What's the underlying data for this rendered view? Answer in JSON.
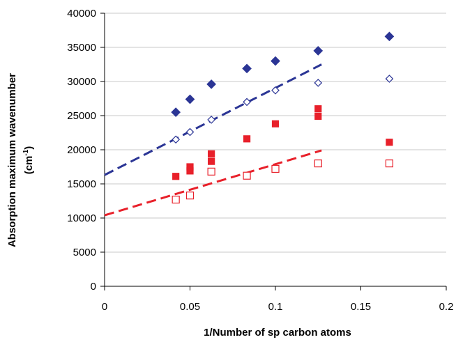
{
  "chart_data": {
    "type": "scatter",
    "xlabel": "1/Number of sp carbon atoms",
    "ylabel": "Absorption maximum wavenumber",
    "ylabel_unit": "(cm-1)",
    "ylabel_unit_base": "(cm",
    "ylabel_unit_sup": "-1",
    "ylabel_unit_close": ")",
    "xlim": [
      0,
      0.2
    ],
    "ylim": [
      0,
      40000
    ],
    "xticks": [
      "0",
      "0.05",
      "0.1",
      "0.15",
      "0.2"
    ],
    "yticks": [
      "0",
      "5000",
      "10000",
      "15000",
      "20000",
      "25000",
      "30000",
      "35000",
      "40000"
    ],
    "grid": "horizontal",
    "series": [
      {
        "marker": "diamond-filled",
        "color": "#2b3595",
        "points": [
          [
            0.0417,
            25500
          ],
          [
            0.05,
            27400
          ],
          [
            0.0625,
            29600
          ],
          [
            0.0833,
            31900
          ],
          [
            0.1,
            33000
          ],
          [
            0.125,
            34500
          ],
          [
            0.1667,
            36600
          ]
        ]
      },
      {
        "marker": "diamond-open",
        "color": "#2b3595",
        "points": [
          [
            0.0417,
            21500
          ],
          [
            0.05,
            22600
          ],
          [
            0.0625,
            24400
          ],
          [
            0.0833,
            27000
          ],
          [
            0.1,
            28700
          ],
          [
            0.125,
            29800
          ],
          [
            0.1667,
            30400
          ]
        ]
      },
      {
        "marker": "square-filled",
        "color": "#e8202a",
        "points": [
          [
            0.0417,
            16100
          ],
          [
            0.05,
            17500
          ],
          [
            0.05,
            16900
          ],
          [
            0.0625,
            19400
          ],
          [
            0.0625,
            18300
          ],
          [
            0.0833,
            21600
          ],
          [
            0.1,
            23800
          ],
          [
            0.125,
            26000
          ],
          [
            0.125,
            24900
          ],
          [
            0.1667,
            21100
          ]
        ]
      },
      {
        "marker": "square-open",
        "color": "#e8202a",
        "points": [
          [
            0.0417,
            12700
          ],
          [
            0.05,
            13300
          ],
          [
            0.0625,
            16800
          ],
          [
            0.0833,
            16200
          ],
          [
            0.1,
            17200
          ],
          [
            0.125,
            18000
          ],
          [
            0.1667,
            18000
          ]
        ]
      }
    ],
    "trendlines": [
      {
        "color": "#2b3595",
        "from": [
          0,
          16300
        ],
        "to": [
          0.127,
          32500
        ]
      },
      {
        "color": "#e8202a",
        "from": [
          0,
          10400
        ],
        "to": [
          0.127,
          19900
        ]
      }
    ]
  }
}
